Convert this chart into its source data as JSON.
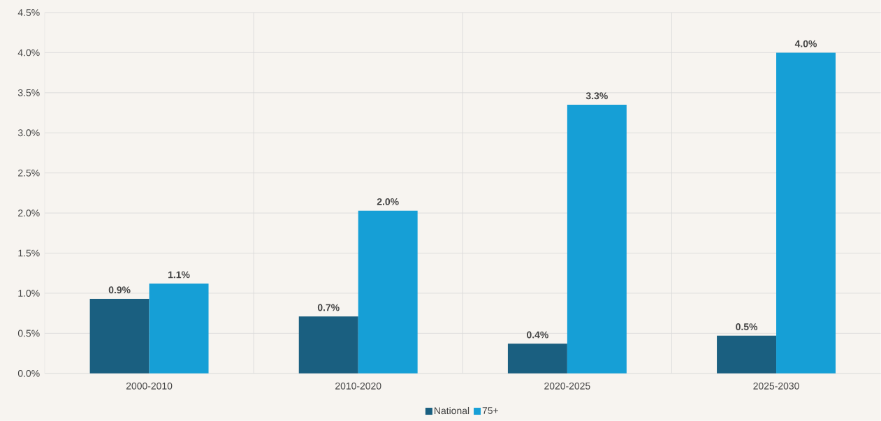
{
  "chart_data": {
    "type": "bar",
    "categories": [
      "2000-2010",
      "2010-2020",
      "2020-2025",
      "2025-2030"
    ],
    "series": [
      {
        "name": "National",
        "color": "#1a5f80",
        "values": [
          0.93,
          0.71,
          0.37,
          0.47
        ],
        "value_labels": [
          "0.9%",
          "0.7%",
          "0.4%",
          "0.5%"
        ]
      },
      {
        "name": "75+",
        "color": "#169fd6",
        "values": [
          1.12,
          2.03,
          3.35,
          4.0
        ],
        "value_labels": [
          "1.1%",
          "2.0%",
          "3.3%",
          "4.0%"
        ]
      }
    ],
    "ylim": [
      0,
      4.5
    ],
    "yticks": [
      {
        "value": 0,
        "label": "0.0%"
      },
      {
        "value": 0.5,
        "label": "0.5%"
      },
      {
        "value": 1,
        "label": "1.0%"
      },
      {
        "value": 1.5,
        "label": "1.5%"
      },
      {
        "value": 2,
        "label": "2.0%"
      },
      {
        "value": 2.5,
        "label": "2.5%"
      },
      {
        "value": 3,
        "label": "3.0%"
      },
      {
        "value": 3.5,
        "label": "3.5%"
      },
      {
        "value": 4,
        "label": "4.0%"
      },
      {
        "value": 4.5,
        "label": "4.5%"
      }
    ],
    "grid": true,
    "legend": "bottom"
  }
}
